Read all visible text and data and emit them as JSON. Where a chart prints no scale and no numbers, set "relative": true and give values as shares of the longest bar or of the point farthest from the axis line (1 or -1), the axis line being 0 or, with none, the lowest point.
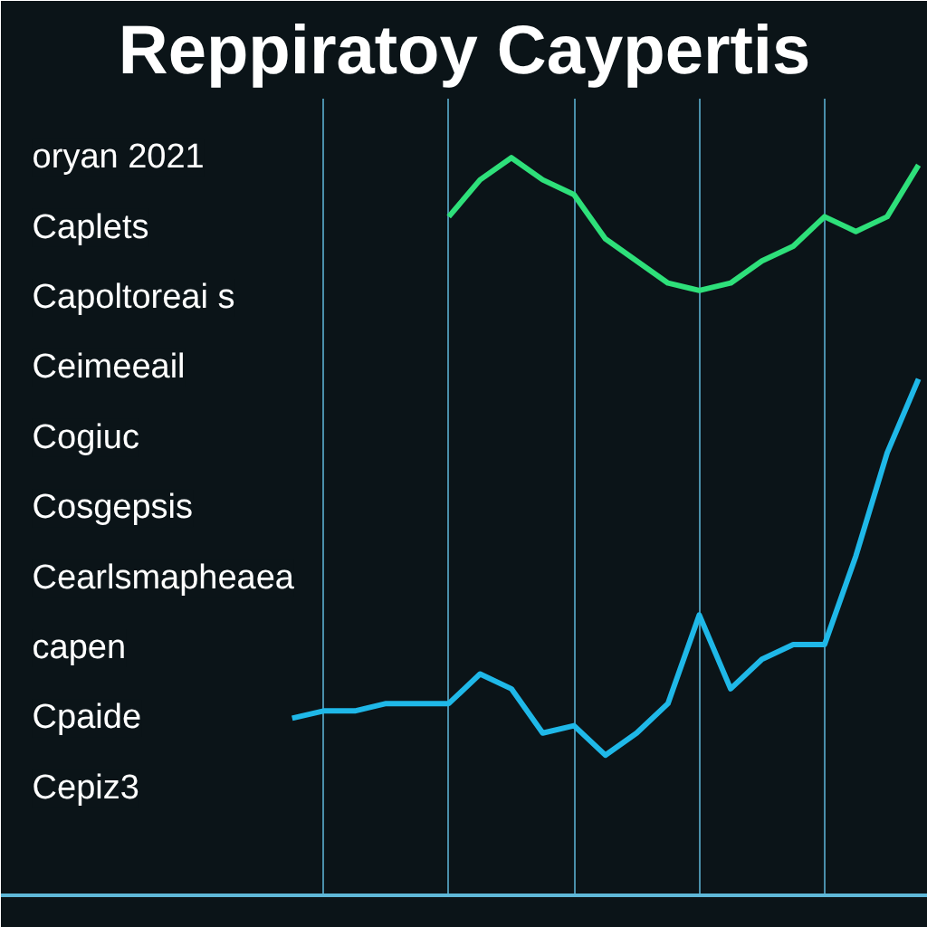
{
  "chart_data": {
    "type": "line",
    "title": "Reppiratoy Caypertis",
    "relative": true,
    "grid": "x",
    "categories": [
      null,
      null,
      null,
      null,
      null,
      null,
      null,
      null,
      null,
      null,
      null,
      null,
      null,
      null,
      null,
      null,
      null,
      null,
      null,
      null,
      null
    ],
    "series": [
      {
        "color": "#2ee07a",
        "values": [
          null,
          null,
          null,
          null,
          null,
          0.92,
          0.97,
          1.0,
          0.97,
          0.95,
          0.89,
          0.86,
          0.83,
          0.82,
          0.83,
          0.86,
          0.88,
          0.92,
          0.9,
          0.92,
          0.99
        ]
      },
      {
        "color": "#1fb8e8",
        "values": [
          0.24,
          0.25,
          0.25,
          0.26,
          0.26,
          0.26,
          0.3,
          0.28,
          0.22,
          0.23,
          0.19,
          0.22,
          0.26,
          0.38,
          0.28,
          0.32,
          0.34,
          0.34,
          0.46,
          0.6,
          0.7
        ]
      }
    ],
    "annotations": [
      "oryan 2021",
      "Caplets",
      "Capoltoreai s",
      "Ceimeeail",
      "Cogiuc",
      "Cosgepsis",
      "Cearlsmapheaea",
      "capen",
      "Cpaide",
      "Cepiz3"
    ]
  }
}
